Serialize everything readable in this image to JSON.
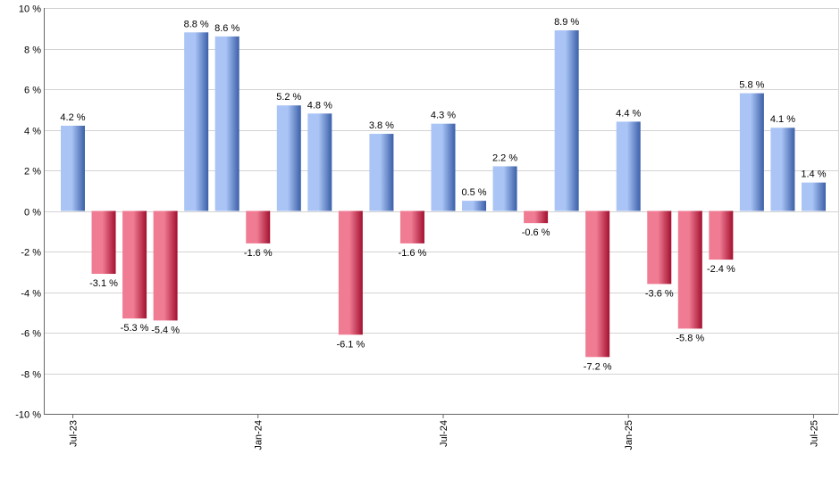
{
  "chart_data": {
    "type": "bar",
    "title": "",
    "xlabel": "",
    "ylabel": "",
    "ylim": [
      -10,
      10
    ],
    "y_ticks": [
      10,
      8,
      6,
      4,
      2,
      0,
      -2,
      -4,
      -6,
      -8,
      -10
    ],
    "y_tick_labels": [
      "10 %",
      "8 %",
      "6 %",
      "4 %",
      "2 %",
      "0 %",
      "-2 %",
      "-4 %",
      "-6 %",
      "-8 %",
      "-10 %"
    ],
    "x_tick_labels": [
      {
        "index": 0,
        "label": "Jul-23"
      },
      {
        "index": 6,
        "label": "Jan-24"
      },
      {
        "index": 12,
        "label": "Jul-24"
      },
      {
        "index": 18,
        "label": "Jan-25"
      },
      {
        "index": 24,
        "label": "Jul-25"
      }
    ],
    "values": [
      4.2,
      -3.1,
      -5.3,
      -5.4,
      8.8,
      8.6,
      -1.6,
      5.2,
      4.8,
      -6.1,
      3.8,
      -1.6,
      4.3,
      0.5,
      2.2,
      -0.6,
      8.9,
      -7.2,
      4.4,
      -3.6,
      -5.8,
      -2.4,
      5.8,
      4.1,
      1.4
    ],
    "data_labels": [
      "4.2 %",
      "-3.1 %",
      "-5.3 %",
      "-5.4 %",
      "8.8 %",
      "8.6 %",
      "-1.6 %",
      "5.2 %",
      "4.8 %",
      "-6.1 %",
      "3.8 %",
      "-1.6 %",
      "4.3 %",
      "0.5 %",
      "2.2 %",
      "-0.6 %",
      "8.9 %",
      "-7.2 %",
      "4.4 %",
      "-3.6 %",
      "-5.8 %",
      "-2.4 %",
      "5.8 %",
      "4.1 %",
      "1.4 %"
    ],
    "grid": true,
    "legend": "none",
    "colors": {
      "positive_light": "#a9c4f5",
      "positive_dark": "#3b5fa8",
      "negative_light": "#f07c94",
      "negative_dark": "#a3102f",
      "grid": "#d3d3d3",
      "axis": "#666666"
    }
  }
}
